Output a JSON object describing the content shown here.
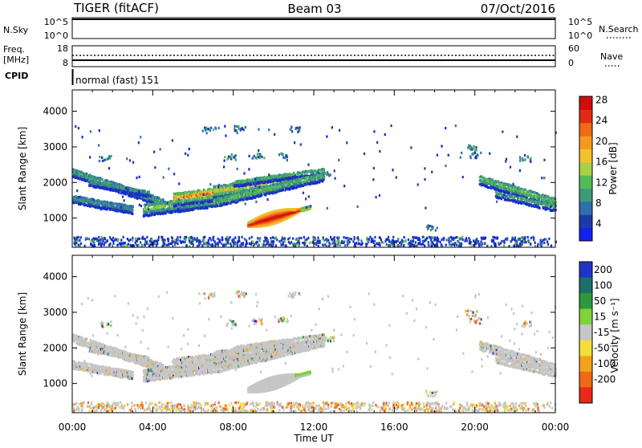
{
  "header": {
    "station": "TIGER (fitACF)",
    "beam": "Beam 03",
    "date": "07/Oct/2016"
  },
  "strips": {
    "nsky": {
      "label": "N.Sky",
      "ticks": [
        "10^5",
        "10^0"
      ]
    },
    "nsearch": {
      "label": "N.Search",
      "ticks": [
        "10^5",
        "10^0"
      ]
    },
    "freq": {
      "label_line1": "Freq.",
      "label_line2": "[MHz]",
      "ticks": [
        "18",
        "8"
      ]
    },
    "nave": {
      "label": "Nave",
      "ticks": [
        "60",
        "0"
      ]
    },
    "cpid": {
      "label": "CPID",
      "value": "normal (fast) 151"
    }
  },
  "chart_data": [
    {
      "type": "heatmap",
      "name": "power",
      "ylabel": "Slant Range [km]",
      "xlabel": "Time UT",
      "y_ticks": [
        "1000",
        "2000",
        "3000",
        "4000"
      ],
      "y_tick_values": [
        1000,
        2000,
        3000,
        4000
      ],
      "ylim": [
        180,
        4600
      ],
      "xlim": [
        0,
        24
      ],
      "colorbar": {
        "label": "Power [dB]",
        "ticks": [
          "4",
          "8",
          "12",
          "16",
          "20",
          "24",
          "28"
        ],
        "colors": [
          "#1122ee",
          "#1e3aa8",
          "#2f6fb0",
          "#3f9a7a",
          "#55bb55",
          "#a8d048",
          "#f2c22e",
          "#f39a1e",
          "#ef6a14",
          "#e22a12",
          "#d20c0c"
        ]
      }
    },
    {
      "type": "heatmap",
      "name": "velocity",
      "ylabel": "Slant Range [km]",
      "xlabel": "Time UT",
      "y_ticks": [
        "1000",
        "2000",
        "3000",
        "4000"
      ],
      "y_tick_values": [
        1000,
        2000,
        3000,
        4000
      ],
      "ylim": [
        180,
        4600
      ],
      "xlim": [
        0,
        24
      ],
      "colorbar": {
        "label": "Velocity [m s⁻¹]",
        "ticks": [
          "200",
          "100",
          "50",
          "15",
          "-15",
          "-50",
          "-100",
          "-200"
        ],
        "colors": [
          "#1f34c8",
          "#1e6e6a",
          "#2c9a3c",
          "#7fd23a",
          "#c6c6c6",
          "#f4de3a",
          "#f3a21c",
          "#ef6a14",
          "#e82a16"
        ]
      }
    }
  ],
  "x_axis": {
    "ticks": [
      "00:00",
      "04:00",
      "08:00",
      "12:00",
      "16:00",
      "20:00",
      "00:00"
    ],
    "tick_hours": [
      0,
      4,
      8,
      12,
      16,
      20,
      24
    ],
    "label": "Time UT"
  }
}
